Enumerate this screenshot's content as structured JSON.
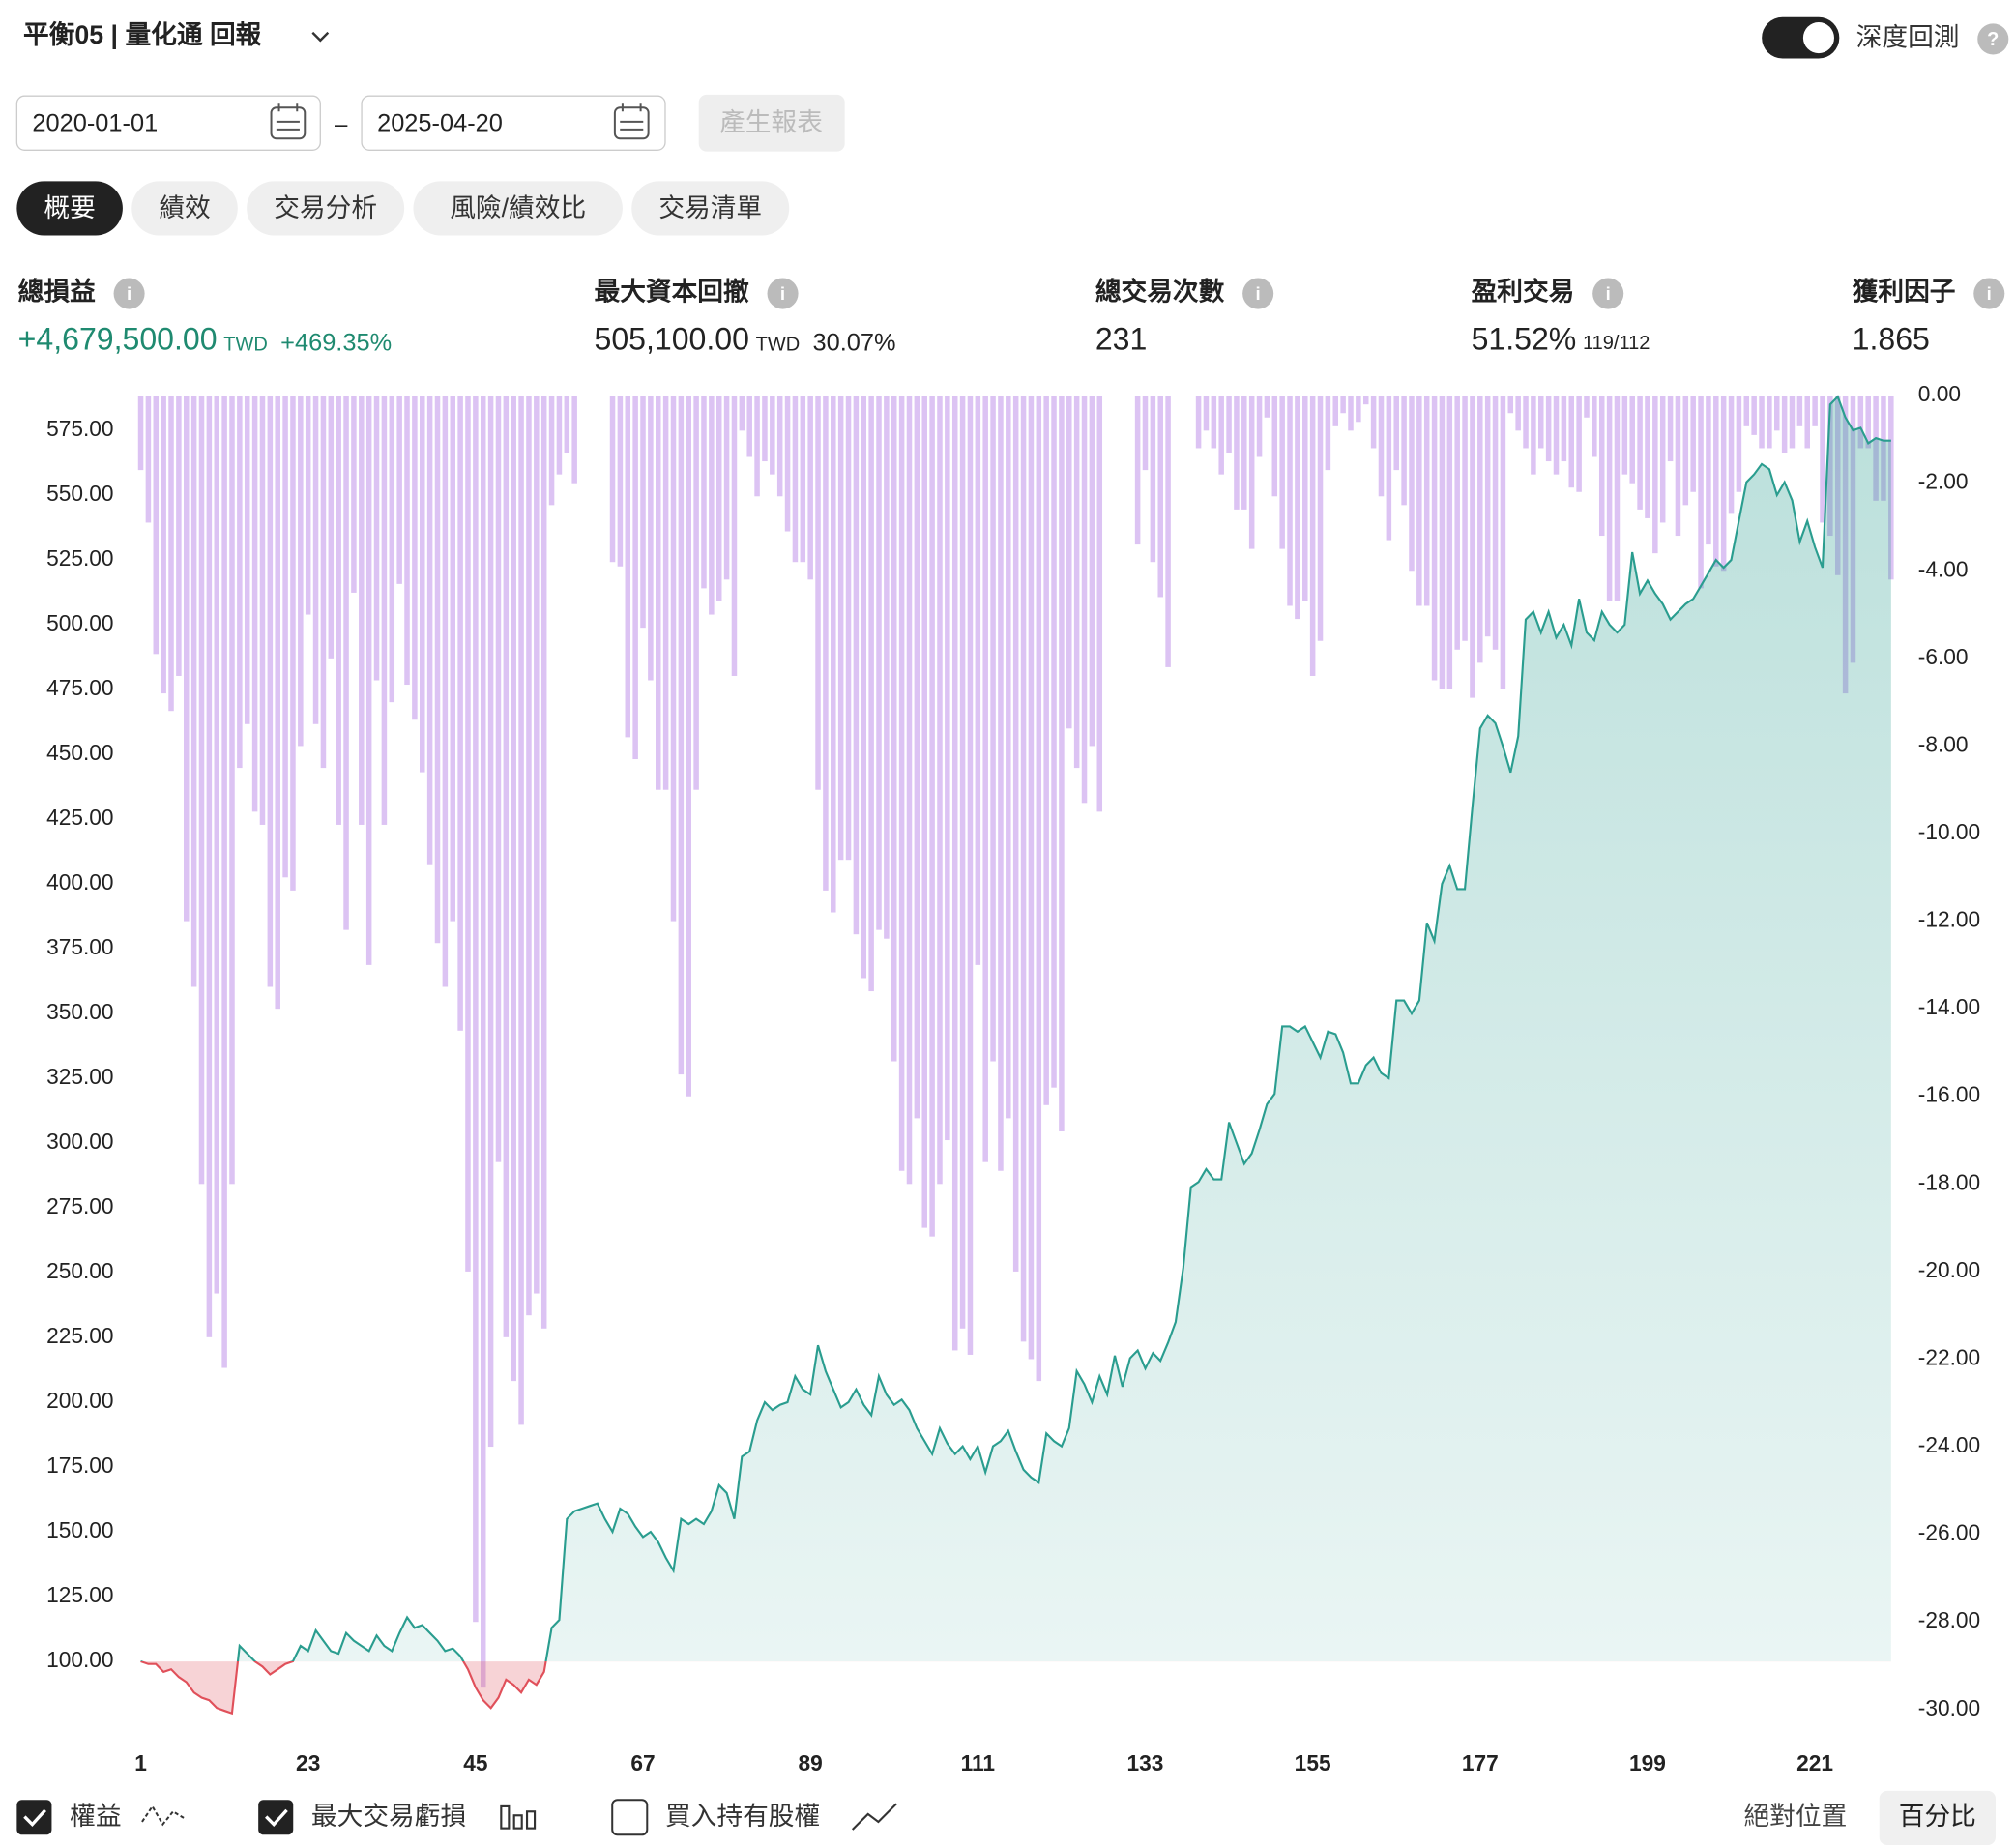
{
  "header": {
    "title": "平衡05 | 量化通 回報",
    "toggle_label": "深度回測",
    "help": "?"
  },
  "controls": {
    "start_date": "2020-01-01",
    "separator": "–",
    "end_date": "2025-04-20",
    "button": "產生報表"
  },
  "tabs": [
    "概要",
    "績效",
    "交易分析",
    "風險/績效比",
    "交易清單"
  ],
  "stats": [
    {
      "label": "總損益",
      "value": "+4,679,500.00",
      "unit": "TWD",
      "extra": "+469.35%"
    },
    {
      "label": "最大資本回撤",
      "value": "505,100.00",
      "unit": "TWD",
      "extra": "30.07%"
    },
    {
      "label": "總交易次數",
      "value": "231"
    },
    {
      "label": "盈利交易",
      "value": "51.52%",
      "extra": "119/112"
    },
    {
      "label": "獲利因子",
      "value": "1.865"
    }
  ],
  "chart_data": {
    "type": "line",
    "grid": false,
    "x": [
      1,
      2,
      3,
      4,
      5,
      6,
      7,
      8,
      9,
      10,
      11,
      12,
      13,
      14,
      15,
      16,
      17,
      18,
      19,
      20,
      21,
      22,
      23,
      24,
      25,
      26,
      27,
      28,
      29,
      30,
      31,
      32,
      33,
      34,
      35,
      36,
      37,
      38,
      39,
      40,
      41,
      42,
      43,
      44,
      45,
      46,
      47,
      48,
      49,
      50,
      51,
      52,
      53,
      54,
      55,
      56,
      57,
      58,
      59,
      60,
      61,
      62,
      63,
      64,
      65,
      66,
      67,
      68,
      69,
      70,
      71,
      72,
      73,
      74,
      75,
      76,
      77,
      78,
      79,
      80,
      81,
      82,
      83,
      84,
      85,
      86,
      87,
      88,
      89,
      90,
      91,
      92,
      93,
      94,
      95,
      96,
      97,
      98,
      99,
      100,
      101,
      102,
      103,
      104,
      105,
      106,
      107,
      108,
      109,
      110,
      111,
      112,
      113,
      114,
      115,
      116,
      117,
      118,
      119,
      120,
      121,
      122,
      123,
      124,
      125,
      126,
      127,
      128,
      129,
      130,
      131,
      132,
      133,
      134,
      135,
      136,
      137,
      138,
      139,
      140,
      141,
      142,
      143,
      144,
      145,
      146,
      147,
      148,
      149,
      150,
      151,
      152,
      153,
      154,
      155,
      156,
      157,
      158,
      159,
      160,
      161,
      162,
      163,
      164,
      165,
      166,
      167,
      168,
      169,
      170,
      171,
      172,
      173,
      174,
      175,
      176,
      177,
      178,
      179,
      180,
      181,
      182,
      183,
      184,
      185,
      186,
      187,
      188,
      189,
      190,
      191,
      192,
      193,
      194,
      195,
      196,
      197,
      198,
      199,
      200,
      201,
      202,
      203,
      204,
      205,
      206,
      207,
      208,
      209,
      210,
      211,
      212,
      213,
      214,
      215,
      216,
      217,
      218,
      219,
      220,
      221,
      222,
      223,
      224,
      225,
      226,
      227,
      228,
      229,
      230,
      231
    ],
    "xlim": [
      0.5,
      231.5
    ],
    "xticks": [
      1,
      23,
      45,
      67,
      89,
      111,
      133,
      155,
      177,
      199,
      221
    ],
    "ylim": [
      73,
      588.4
    ],
    "yticks": [
      {
        "value": 100,
        "label": "100.00"
      },
      {
        "value": 125,
        "label": "125.00"
      },
      {
        "value": 150,
        "label": "150.00"
      },
      {
        "value": 175,
        "label": "175.00"
      },
      {
        "value": 200,
        "label": "200.00"
      },
      {
        "value": 225,
        "label": "225.00"
      },
      {
        "value": 250,
        "label": "250.00"
      },
      {
        "value": 275,
        "label": "275.00"
      },
      {
        "value": 300,
        "label": "300.00"
      },
      {
        "value": 325,
        "label": "325.00"
      },
      {
        "value": 350,
        "label": "350.00"
      },
      {
        "value": 375,
        "label": "375.00"
      },
      {
        "value": 400,
        "label": "400.00"
      },
      {
        "value": 425,
        "label": "425.00"
      },
      {
        "value": 450,
        "label": "450.00"
      },
      {
        "value": 475,
        "label": "475.00"
      },
      {
        "value": 500,
        "label": "500.00"
      },
      {
        "value": 525,
        "label": "525.00"
      },
      {
        "value": 550,
        "label": "550.00"
      },
      {
        "value": 575,
        "label": "575.00"
      }
    ],
    "y2lim": [
      -30.5,
      0
    ],
    "y2ticks": [
      {
        "value": 0,
        "label": "0.00"
      },
      {
        "value": -2,
        "label": "-2.00"
      },
      {
        "value": -4,
        "label": "-4.00"
      },
      {
        "value": -6,
        "label": "-6.00"
      },
      {
        "value": -8,
        "label": "-8.00"
      },
      {
        "value": -10,
        "label": "-10.00"
      },
      {
        "value": -12,
        "label": "-12.00"
      },
      {
        "value": -14,
        "label": "-14.00"
      },
      {
        "value": -16,
        "label": "-16.00"
      },
      {
        "value": -18,
        "label": "-18.00"
      },
      {
        "value": -20,
        "label": "-20.00"
      },
      {
        "value": -22,
        "label": "-22.00"
      },
      {
        "value": -24,
        "label": "-24.00"
      },
      {
        "value": -26,
        "label": "-26.00"
      },
      {
        "value": -28,
        "label": "-28.00"
      },
      {
        "value": -30,
        "label": "-30.00"
      }
    ],
    "series": [
      {
        "name": "權益",
        "type": "line",
        "color": "#2a9d8f",
        "negative_color": "#e0505a",
        "values": [
          100,
          99,
          99,
          96,
          97,
          94,
          92,
          88,
          86,
          85,
          82,
          81,
          80,
          106,
          103,
          100,
          98,
          95,
          97,
          99,
          100,
          106,
          104,
          112,
          108,
          104,
          103,
          111,
          108,
          106,
          104,
          110,
          106,
          104,
          111,
          117,
          113,
          114,
          111,
          108,
          104,
          105,
          102,
          97,
          90,
          85,
          82,
          86,
          93,
          91,
          88,
          93,
          91,
          96,
          113,
          116,
          155,
          158,
          159,
          160,
          161,
          155,
          150,
          159,
          157,
          152,
          148,
          150,
          146,
          140,
          135,
          155,
          153,
          155,
          153,
          158,
          168,
          165,
          155,
          179,
          181,
          193,
          200,
          197,
          199,
          200,
          210,
          205,
          203,
          222,
          212,
          205,
          198,
          200,
          205,
          199,
          195,
          210,
          203,
          199,
          201,
          197,
          190,
          185,
          180,
          190,
          184,
          180,
          183,
          178,
          183,
          173,
          183,
          185,
          189,
          181,
          174,
          171,
          169,
          188,
          185,
          183,
          190,
          212,
          207,
          200,
          210,
          203,
          218,
          206,
          217,
          220,
          213,
          219,
          216,
          223,
          231,
          252,
          283,
          285,
          290,
          286,
          286,
          308,
          300,
          292,
          296,
          305,
          315,
          319,
          345,
          345,
          343,
          345,
          339,
          333,
          343,
          342,
          335,
          323,
          323,
          330,
          333,
          327,
          325,
          355,
          355,
          350,
          355,
          385,
          378,
          400,
          407,
          398,
          398,
          430,
          460,
          465,
          462,
          453,
          443,
          457,
          502,
          505,
          497,
          505,
          495,
          500,
          492,
          510,
          497,
          494,
          505,
          500,
          497,
          500,
          528,
          512,
          517,
          512,
          508,
          502,
          505,
          508,
          510,
          515,
          520,
          525,
          522,
          525,
          540,
          555,
          558,
          562,
          560,
          550,
          555,
          548,
          532,
          540,
          530,
          522,
          585,
          588,
          580,
          575,
          576,
          570,
          572,
          571,
          571
        ]
      },
      {
        "name": "最大交易虧損",
        "type": "bar",
        "axis": "y2",
        "color": "#dcc3f3",
        "values": [
          -1.7,
          -2.9,
          -5.9,
          -6.8,
          -7.2,
          -6.4,
          -12,
          -13.5,
          -18,
          -21.5,
          -20.5,
          -22.2,
          -18,
          -8.5,
          -7.5,
          -9.5,
          -9.8,
          -13.5,
          -14,
          -11,
          -11.3,
          -8,
          -5,
          -7.5,
          -8.5,
          -6,
          -9.8,
          -12.2,
          -4.5,
          -9.8,
          -13,
          -6.5,
          -9.8,
          -7,
          -4.3,
          -6.6,
          -7.4,
          -8.6,
          -10.7,
          -12.5,
          -13.5,
          -12,
          -14.5,
          -20,
          -28,
          -29.5,
          -24,
          -17.5,
          -21.5,
          -22.5,
          -23.5,
          -21,
          -20.5,
          -21.3,
          -2.5,
          -1.8,
          -1.3,
          -2,
          0,
          0,
          0,
          0,
          -3.8,
          -3.9,
          -7.8,
          -8.3,
          -5.3,
          -6.5,
          -9,
          -9,
          -12,
          -15.5,
          -16,
          -9,
          -4.4,
          -5,
          -4.7,
          -4.2,
          -6.4,
          -0.8,
          -1.4,
          -2.3,
          -1.5,
          -1.8,
          -2.3,
          -3.1,
          -3.8,
          -3.8,
          -4.2,
          -9,
          -11.3,
          -11.8,
          -10.6,
          -10.6,
          -12.3,
          -13.3,
          -13.6,
          -12.2,
          -12.4,
          -15.2,
          -17.7,
          -18,
          -16.5,
          -19,
          -19.2,
          -18,
          -17,
          -21.8,
          -21.3,
          -21.9,
          -13,
          -17.5,
          -15.2,
          -17.7,
          -16.5,
          -20,
          -21.6,
          -22,
          -22.5,
          -16.2,
          -15.8,
          -16.8,
          -7.6,
          -8.5,
          -9.3,
          -8,
          -9.5,
          0,
          0,
          0,
          0,
          -3.4,
          -1.7,
          -3.8,
          -4.6,
          -6.2,
          0,
          0,
          0,
          -1.2,
          -0.8,
          -1.2,
          -1.8,
          -1.3,
          -2.6,
          -2.6,
          -3.5,
          -1.4,
          -0.5,
          -2.3,
          -3.5,
          -4.8,
          -5.1,
          -4.7,
          -6.4,
          -5.6,
          -1.7,
          -0.7,
          -0.4,
          -0.8,
          -0.6,
          -0.2,
          -1.2,
          -2.3,
          -3.3,
          -1.7,
          -2.5,
          -4,
          -4.8,
          -4.8,
          -6.5,
          -6.7,
          -6.7,
          -5.8,
          -5.6,
          -6.9,
          -6.1,
          -5.5,
          -5.8,
          -6.7,
          -0.4,
          -0.8,
          -1.2,
          -1.8,
          -1.2,
          -1.5,
          -1.8,
          -1.5,
          -2.1,
          -2.2,
          -0.5,
          -1.4,
          -3.2,
          -4.7,
          -4.7,
          -1.8,
          -2,
          -2.6,
          -2.8,
          -3.6,
          -2.9,
          -1.5,
          -3.2,
          -2.5,
          -2.2,
          -4.4,
          -3.4,
          -3.9,
          -4,
          -2.7,
          -2.2,
          -0.7,
          -0.9,
          -1.2,
          -1.2,
          -0.8,
          -1.3,
          -1.2,
          -0.7,
          -1.2,
          -0.7,
          -2.9,
          -3.2,
          -4.1,
          -6.8,
          -6.1,
          -1.2,
          -1.2,
          -2.4,
          -2.4,
          -4.2
        ]
      }
    ]
  },
  "legend": {
    "items": [
      "權益",
      "最大交易虧損",
      "買入持有股權"
    ]
  },
  "view_toggle": [
    "絕對位置",
    "百分比"
  ]
}
